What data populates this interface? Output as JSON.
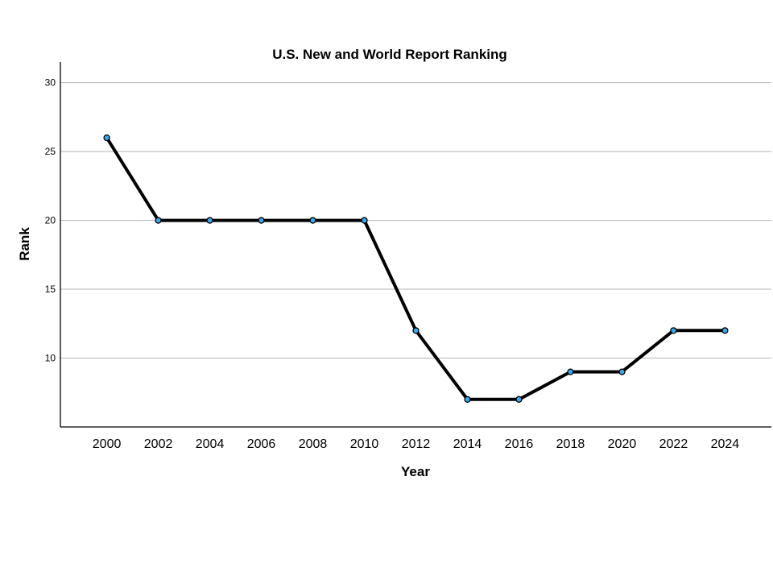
{
  "chart_data": {
    "type": "line",
    "title": "U.S. New and World Report Ranking",
    "xlabel": "Year",
    "ylabel": "Rank",
    "x": [
      2000,
      2002,
      2004,
      2006,
      2008,
      2010,
      2012,
      2014,
      2016,
      2018,
      2020,
      2022,
      2024
    ],
    "series": [
      {
        "values": [
          26,
          20,
          20,
          20,
          20,
          20,
          12,
          7,
          7,
          9,
          9,
          12,
          12
        ]
      }
    ],
    "yticks": [
      10,
      15,
      20,
      25,
      30
    ],
    "ylim": [
      5,
      31.5
    ],
    "xlim": [
      1998.2,
      2025.8
    ],
    "grid": true,
    "legend": "none",
    "colors": {
      "line": "#000000",
      "marker": "#3ca7e8",
      "grid": "#b4b4b4"
    }
  }
}
